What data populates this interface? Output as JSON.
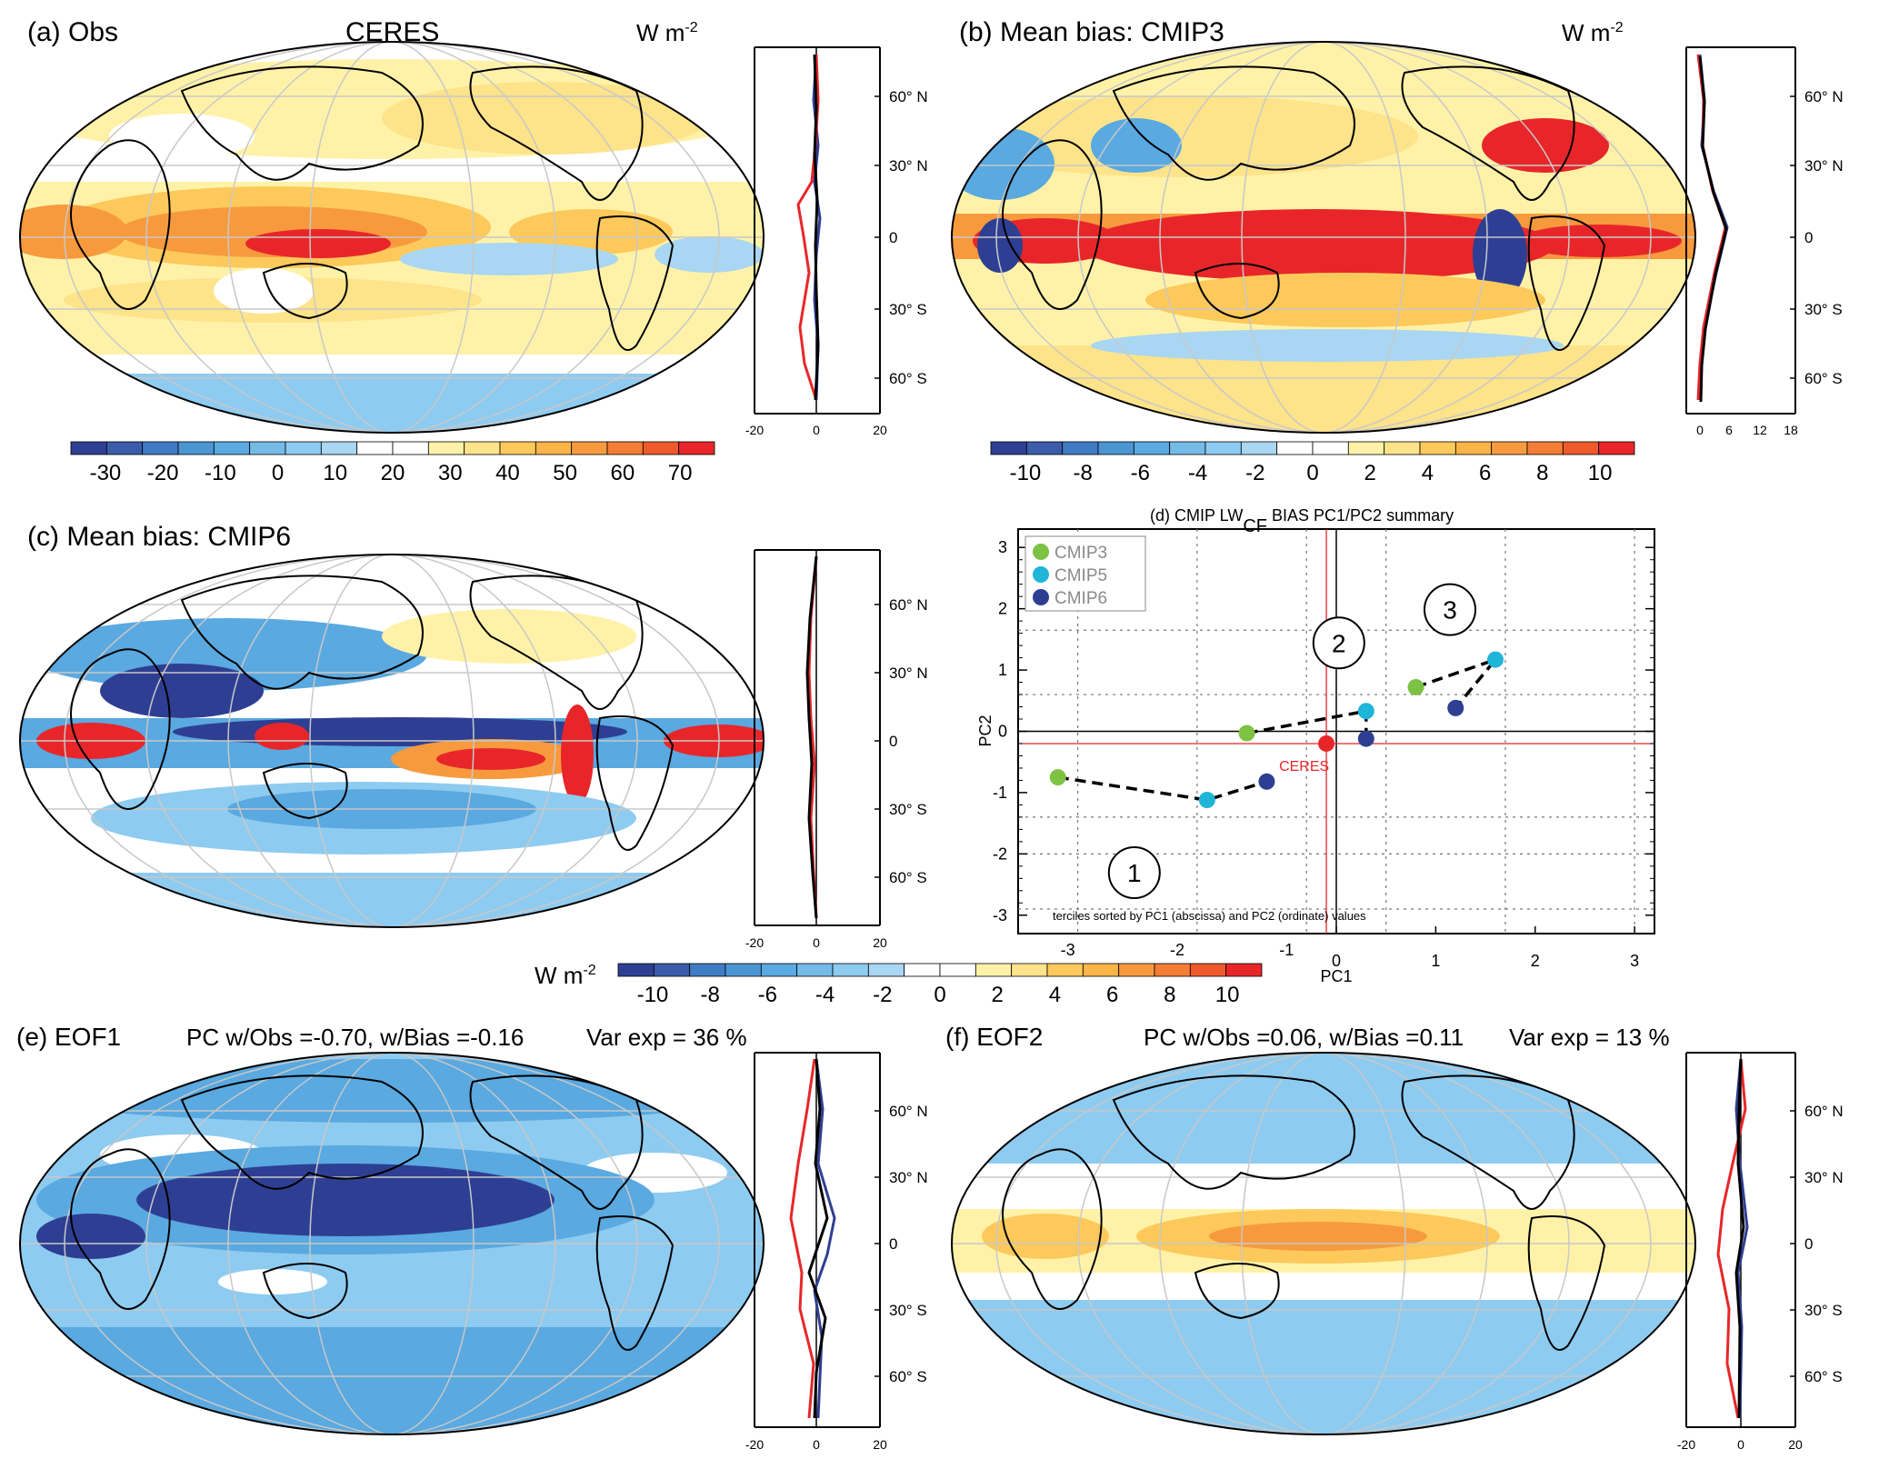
{
  "panels": {
    "a": {
      "label": "(a) Obs",
      "center_title": "CERES",
      "units": "W m",
      "units_exp": "-2"
    },
    "b": {
      "label": "(b) Mean bias: CMIP3",
      "units": "W m",
      "units_exp": "-2"
    },
    "c": {
      "label": "(c) Mean bias: CMIP6"
    },
    "e": {
      "label": "(e) EOF1",
      "stats": "PC w/Obs =-0.70, w/Bias =-0.16",
      "varexp": "Var exp = 36 %"
    },
    "f": {
      "label": "(f) EOF2",
      "stats": "PC w/Obs =0.06, w/Bias =0.11",
      "varexp": "Var exp = 13 %"
    }
  },
  "lat_labels": [
    "60° N",
    "30° N",
    "0",
    "30° S",
    "60° S"
  ],
  "colorbars": {
    "a": {
      "ticks": [
        "-30",
        "-20",
        "-10",
        "0",
        "10",
        "20",
        "30",
        "40",
        "50",
        "60",
        "70"
      ]
    },
    "b": {
      "ticks": [
        "-10",
        "-8",
        "-6",
        "-4",
        "-2",
        "0",
        "2",
        "4",
        "6",
        "8",
        "10"
      ]
    },
    "shared": {
      "units": "W m",
      "units_exp": "-2",
      "ticks": [
        "-10",
        "-8",
        "-6",
        "-4",
        "-2",
        "0",
        "2",
        "4",
        "6",
        "8",
        "10"
      ]
    }
  },
  "side_axes": {
    "a": [
      "-20",
      "0",
      "20"
    ],
    "b": [
      "0",
      "6",
      "12",
      "18"
    ],
    "c": [
      "-20",
      "0",
      "20"
    ],
    "e": [
      "-20",
      "0",
      "20"
    ],
    "f": [
      "-20",
      "0",
      "20"
    ]
  },
  "colors": {
    "cmip3": "#7dc242",
    "cmip5": "#1fb5d8",
    "cmip6": "#2e3f93",
    "ceres": "#e8262a",
    "line_red": "#e8262a",
    "line_blue": "#2e3f93",
    "line_black": "#000000"
  },
  "chart_data": {
    "type": "scatter",
    "title": "(d) CMIP LW",
    "title_sub": "CF",
    "title_tail": " BIAS PC1/PC2 summary",
    "xlabel": "PC1",
    "ylabel": "PC2",
    "xlim": [
      -3.2,
      3.2
    ],
    "ylim": [
      -3.3,
      3.3
    ],
    "xticks_top": [
      "-3",
      "-2",
      "-1"
    ],
    "xticks_bottom": [
      "0",
      "1",
      "2",
      "3"
    ],
    "yticks": [
      "3",
      "2",
      "1",
      "0",
      "-1",
      "-2",
      "-3"
    ],
    "legend": [
      "CMIP3",
      "CMIP5",
      "CMIP6"
    ],
    "note": "terciles sorted by PC1 (abscissa) and PC2 (ordinate) values",
    "ceres_label": "CERES",
    "ceres_point": {
      "x": -0.1,
      "y": -0.2
    },
    "groups": [
      {
        "label": "1",
        "points": [
          {
            "series": "CMIP3",
            "x": -2.8,
            "y": -0.75
          },
          {
            "series": "CMIP5",
            "x": -1.3,
            "y": -1.12
          },
          {
            "series": "CMIP6",
            "x": -0.7,
            "y": -0.82
          }
        ]
      },
      {
        "label": "2",
        "points": [
          {
            "series": "CMIP3",
            "x": -0.9,
            "y": -0.03
          },
          {
            "series": "CMIP5",
            "x": 0.3,
            "y": 0.33
          },
          {
            "series": "CMIP6",
            "x": 0.3,
            "y": -0.12
          }
        ]
      },
      {
        "label": "3",
        "points": [
          {
            "series": "CMIP3",
            "x": 0.8,
            "y": 0.72
          },
          {
            "series": "CMIP5",
            "x": 1.6,
            "y": 1.17
          },
          {
            "series": "CMIP6",
            "x": 1.2,
            "y": 0.38
          }
        ]
      }
    ]
  }
}
